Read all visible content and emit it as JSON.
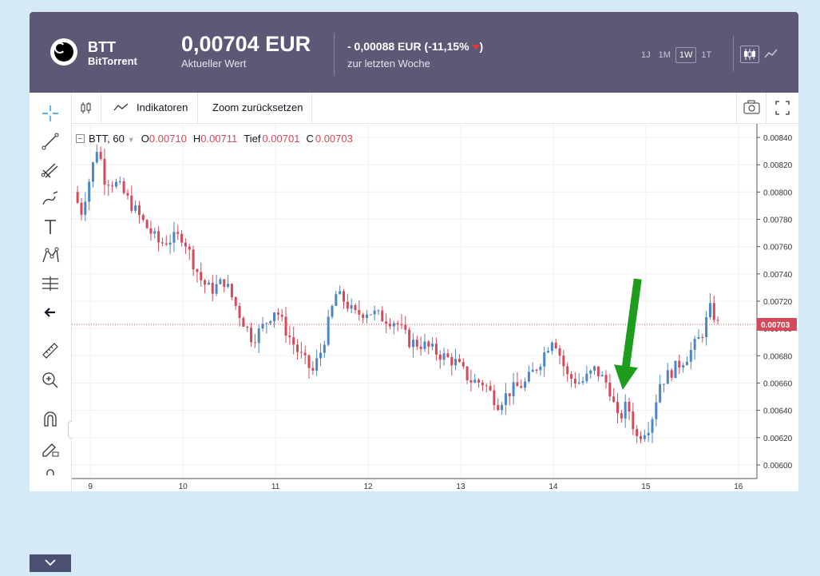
{
  "header": {
    "symbol": "BTT",
    "name": "BitTorrent",
    "price": "0,00704 EUR",
    "price_label": "Aktueller Wert",
    "change": "- 0,00088 EUR (-11,15%",
    "change_close": ")",
    "change_label": "zur letzten Woche",
    "periods": [
      "1J",
      "1M",
      "1W",
      "1T"
    ],
    "active_period": "1W",
    "colors": {
      "header_bg": "#5e5877",
      "up": "#4a86c8",
      "down": "#d44a5a"
    }
  },
  "toolbar": {
    "indicators_label": "Indikatoren",
    "reset_zoom_label": "Zoom zurücksetzen",
    "tools": [
      "crosshair-icon",
      "trend-line-icon",
      "pitchfork-icon",
      "brush-icon",
      "text-icon",
      "pattern-icon",
      "measure-icon",
      "arrow-left-icon",
      "ruler-icon",
      "zoom-in-icon",
      "magnet-icon",
      "lock-pencil-icon",
      "lock-icon"
    ]
  },
  "legend": {
    "symbol": "BTT, 60",
    "o_label": "O",
    "o_value": "0.00710",
    "h_label": "H",
    "h_value": "0.00711",
    "l_label": "Tief",
    "l_value": "0.00701",
    "c_label": "C",
    "c_value": "0.00703"
  },
  "chart_data": {
    "type": "candlestick",
    "x_ticks": [
      "9",
      "10",
      "11",
      "12",
      "13",
      "14",
      "15",
      "16"
    ],
    "y_ticks": [
      "0.00600",
      "0.00620",
      "0.00640",
      "0.00660",
      "0.00680",
      "0.00700",
      "0.00720",
      "0.00740",
      "0.00760",
      "0.00780",
      "0.00800",
      "0.00820",
      "0.00840"
    ],
    "ylim": [
      0.0059,
      0.0085
    ],
    "xlim": [
      8.8,
      16.2
    ],
    "current_price": 0.00703,
    "current_price_label": "0.00703",
    "anchors": [
      [
        8.82,
        0.008
      ],
      [
        8.9,
        0.00785
      ],
      [
        9.0,
        0.00812
      ],
      [
        9.08,
        0.00835
      ],
      [
        9.15,
        0.0081
      ],
      [
        9.3,
        0.00805
      ],
      [
        9.45,
        0.0079
      ],
      [
        9.6,
        0.00775
      ],
      [
        9.75,
        0.00762
      ],
      [
        9.85,
        0.00765
      ],
      [
        10.0,
        0.00768
      ],
      [
        10.1,
        0.0075
      ],
      [
        10.2,
        0.00735
      ],
      [
        10.3,
        0.00728
      ],
      [
        10.45,
        0.00735
      ],
      [
        10.6,
        0.00712
      ],
      [
        10.75,
        0.00692
      ],
      [
        10.85,
        0.007
      ],
      [
        11.0,
        0.00715
      ],
      [
        11.1,
        0.007
      ],
      [
        11.25,
        0.00682
      ],
      [
        11.4,
        0.00668
      ],
      [
        11.5,
        0.00685
      ],
      [
        11.65,
        0.00725
      ],
      [
        11.75,
        0.0072
      ],
      [
        11.85,
        0.0071
      ],
      [
        12.0,
        0.00713
      ],
      [
        12.15,
        0.00708
      ],
      [
        12.3,
        0.00705
      ],
      [
        12.45,
        0.0069
      ],
      [
        12.6,
        0.00688
      ],
      [
        12.8,
        0.0068
      ],
      [
        12.95,
        0.00675
      ],
      [
        13.1,
        0.00662
      ],
      [
        13.25,
        0.0066
      ],
      [
        13.4,
        0.00645
      ],
      [
        13.55,
        0.00655
      ],
      [
        13.7,
        0.0066
      ],
      [
        13.85,
        0.00675
      ],
      [
        14.0,
        0.00695
      ],
      [
        14.15,
        0.00665
      ],
      [
        14.3,
        0.0066
      ],
      [
        14.45,
        0.0067
      ],
      [
        14.6,
        0.00658
      ],
      [
        14.7,
        0.00632
      ],
      [
        14.8,
        0.00645
      ],
      [
        14.9,
        0.0062
      ],
      [
        15.05,
        0.0063
      ],
      [
        15.15,
        0.0066
      ],
      [
        15.3,
        0.0067
      ],
      [
        15.45,
        0.0068
      ],
      [
        15.6,
        0.00695
      ],
      [
        15.7,
        0.00715
      ],
      [
        15.78,
        0.00703
      ]
    ],
    "annotation": "green-arrow"
  }
}
